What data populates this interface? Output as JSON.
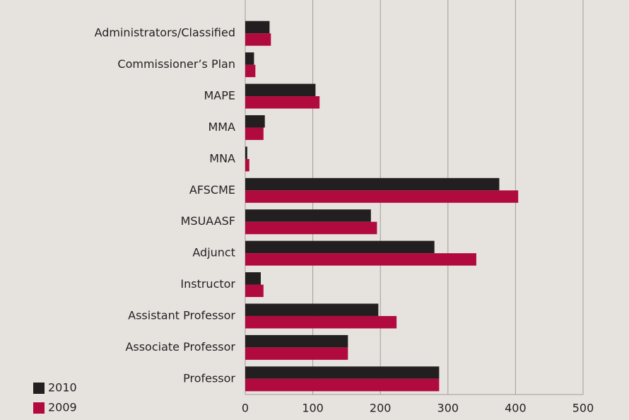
{
  "chart_data": {
    "type": "bar",
    "orientation": "horizontal",
    "categories": [
      "Administrators/Classified",
      "Commissioner’s Plan",
      "MAPE",
      "MMA",
      "MNA",
      "AFSCME",
      "MSUAASF",
      "Adjunct",
      "Instructor",
      "Assistant Professor",
      "Associate Professor",
      "Professor"
    ],
    "series": [
      {
        "name": "2010",
        "color": "#231f20",
        "values": [
          36,
          13,
          104,
          29,
          3,
          376,
          186,
          280,
          23,
          197,
          152,
          287
        ]
      },
      {
        "name": "2009",
        "color": "#b10a3e",
        "values": [
          38,
          15,
          110,
          27,
          6,
          404,
          195,
          342,
          27,
          224,
          152,
          287
        ]
      }
    ],
    "xlim": [
      0,
      500
    ],
    "xticks": [
      0,
      100,
      200,
      300,
      400,
      500
    ],
    "grid": true,
    "legend": "bottom-left"
  }
}
